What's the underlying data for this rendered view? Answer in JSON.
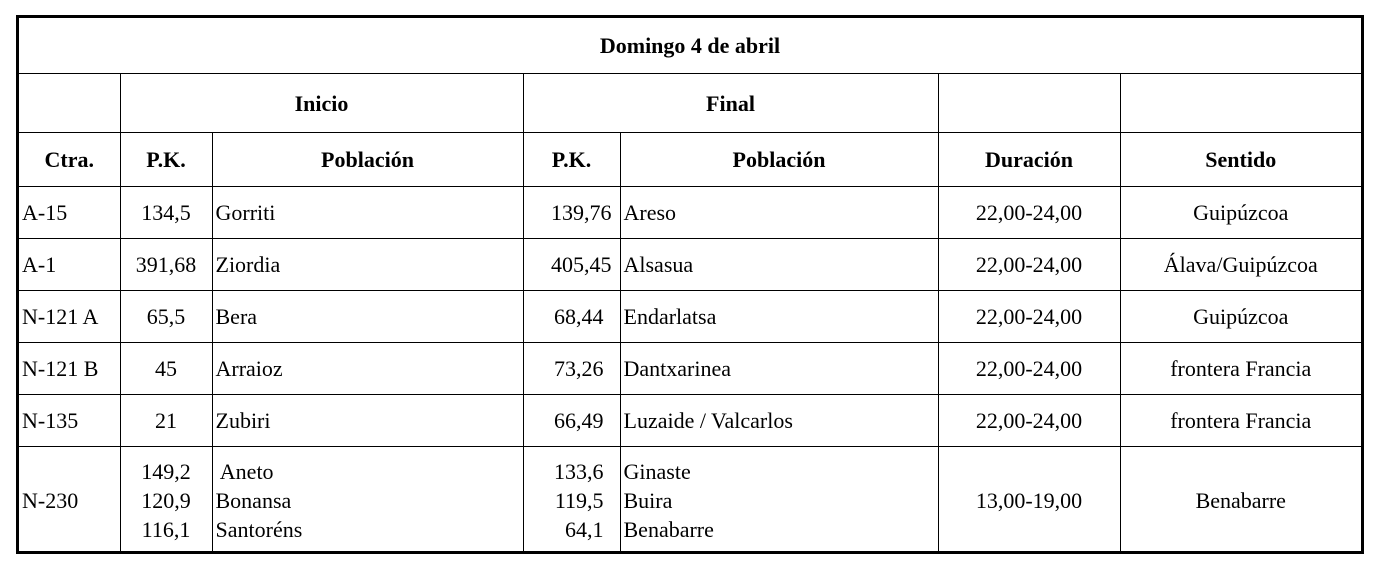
{
  "title": "Domingo  4  de abril",
  "groups": {
    "inicio": "Inicio",
    "final": "Final"
  },
  "headers": {
    "ctra": "Ctra.",
    "pk_inicio": "P.K.",
    "poblacion_inicio": "Población",
    "pk_final": "P.K.",
    "poblacion_final": "Población",
    "duracion": "Duración",
    "sentido": "Sentido"
  },
  "rows": [
    {
      "ctra": "A-15",
      "pk_inicio": "134,5",
      "poblacion_inicio": "Gorriti",
      "pk_final": "139,76",
      "poblacion_final": "Areso",
      "duracion": "22,00-24,00",
      "sentido": "Guipúzcoa"
    },
    {
      "ctra": "A-1",
      "pk_inicio": "391,68",
      "poblacion_inicio": "Ziordia",
      "pk_final": "405,45",
      "poblacion_final": "Alsasua",
      "duracion": "22,00-24,00",
      "sentido": "Álava/Guipúzcoa"
    },
    {
      "ctra": "N-121 A",
      "pk_inicio": "65,5",
      "poblacion_inicio": "Bera",
      "pk_final": "68,44",
      "poblacion_final": "Endarlatsa",
      "duracion": "22,00-24,00",
      "sentido": "Guipúzcoa"
    },
    {
      "ctra": "N-121 B",
      "pk_inicio": "45",
      "poblacion_inicio": "Arraioz",
      "pk_final": "73,26",
      "poblacion_final": "Dantxarinea",
      "duracion": "22,00-24,00",
      "sentido": "frontera Francia"
    },
    {
      "ctra": "N-135",
      "pk_inicio": "21",
      "poblacion_inicio": "Zubiri",
      "pk_final": "66,49",
      "poblacion_final": "Luzaide / Valcarlos",
      "duracion": "22,00-24,00",
      "sentido": "frontera Francia"
    }
  ],
  "last_row": {
    "ctra": "N-230",
    "pk_inicio": [
      "149,2",
      "120,9",
      "116,1"
    ],
    "poblacion_inicio": [
      " Aneto",
      "Bonansa",
      "Santoréns"
    ],
    "pk_final": [
      "133,6",
      "119,5",
      "64,1"
    ],
    "poblacion_final": [
      "Ginaste",
      "Buira",
      "Benabarre"
    ],
    "duracion": "13,00-19,00",
    "sentido": "Benabarre"
  }
}
